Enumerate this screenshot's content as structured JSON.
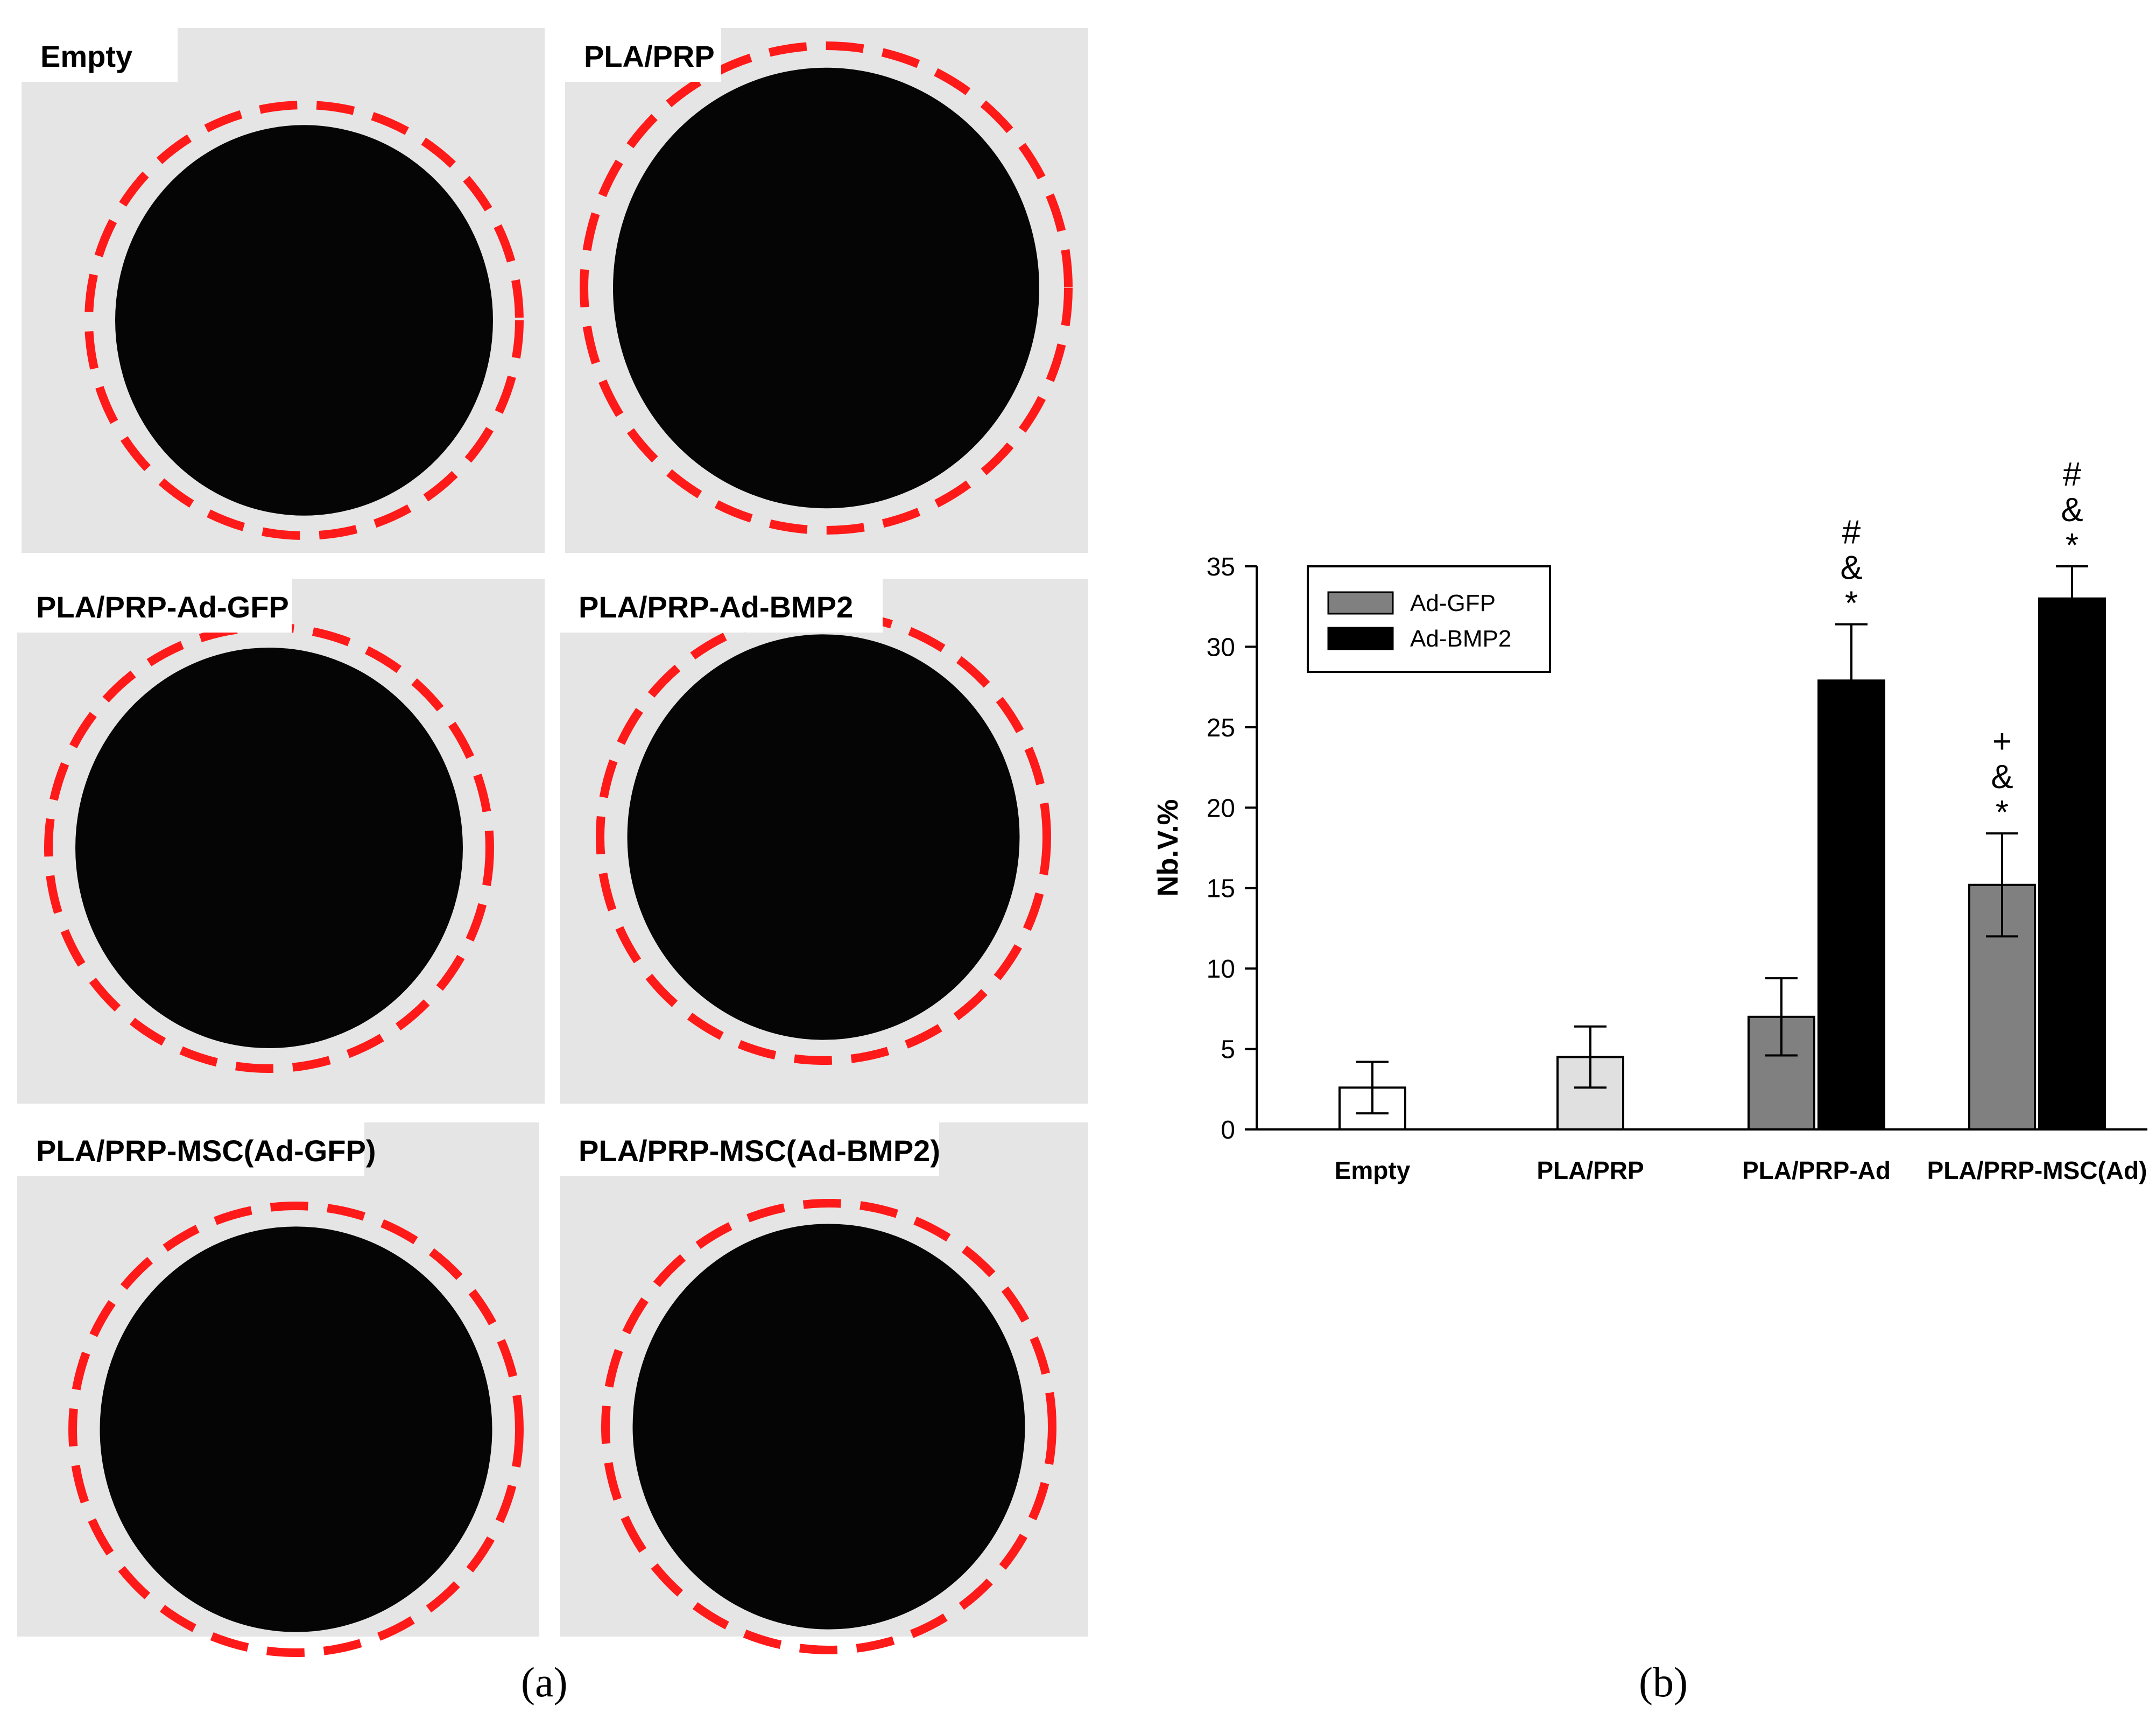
{
  "panel_a": {
    "caption": "(a)",
    "images": [
      {
        "label": "Empty"
      },
      {
        "label": "PLA/PRP"
      },
      {
        "label": "PLA/PRP-Ad-GFP"
      },
      {
        "label": "PLA/PRP-Ad-BMP2"
      },
      {
        "label": "PLA/PRP-MSC(Ad-GFP)"
      },
      {
        "label": "PLA/PRP-MSC(Ad-BMP2)"
      }
    ],
    "colors": {
      "background": "#dcdcdc",
      "defect": "#050505",
      "outline": "#ff1a1a"
    }
  },
  "panel_b": {
    "caption": "(b)"
  },
  "chart_data": {
    "type": "bar",
    "categories": [
      "Empty",
      "PLA/PRP",
      "PLA/PRP-Ad",
      "PLA/PRP-MSC(Ad)"
    ],
    "ylabel": "Nb.V.%",
    "xlabel": "",
    "ylim": [
      0,
      35
    ],
    "yticks": [
      0,
      5,
      10,
      15,
      20,
      25,
      30,
      35
    ],
    "grid": false,
    "legend": {
      "placement": "top-left",
      "entries": [
        "Ad-GFP",
        "Ad-BMP2"
      ]
    },
    "bars": [
      {
        "category": "Empty",
        "series": "",
        "value": 2.6,
        "error": 1.6,
        "color": "#ffffff",
        "annotation": []
      },
      {
        "category": "PLA/PRP",
        "series": "",
        "value": 4.5,
        "error": 1.9,
        "color": "#e0e0e0",
        "annotation": []
      },
      {
        "category": "PLA/PRP-Ad",
        "series": "Ad-GFP",
        "value": 7.0,
        "error": 2.4,
        "color": "#808080",
        "annotation": []
      },
      {
        "category": "PLA/PRP-Ad",
        "series": "Ad-BMP2",
        "value": 27.9,
        "error": 3.5,
        "color": "#000000",
        "annotation": [
          "#",
          "&",
          "*"
        ]
      },
      {
        "category": "PLA/PRP-MSC(Ad)",
        "series": "Ad-GFP",
        "value": 15.2,
        "error": 3.2,
        "color": "#808080",
        "annotation": [
          "+",
          "&",
          "*"
        ]
      },
      {
        "category": "PLA/PRP-MSC(Ad)",
        "series": "Ad-BMP2",
        "value": 33.0,
        "error": 2.0,
        "color": "#000000",
        "annotation": [
          "#",
          "&",
          "*"
        ]
      }
    ],
    "series_colors": {
      "Ad-GFP": "#808080",
      "Ad-BMP2": "#000000"
    }
  }
}
